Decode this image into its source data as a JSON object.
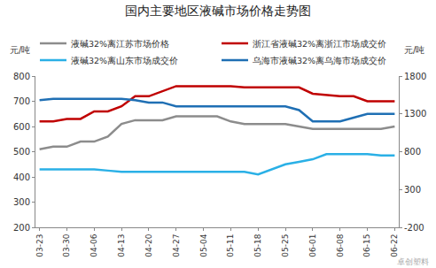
{
  "chart_data": {
    "type": "line",
    "title": "国内主要地区液碱市场价格走势图",
    "y_label": "元/吨",
    "y2_label": "元/吨",
    "annotations": [
      "卓创塑料"
    ],
    "categories": [
      "03-23",
      null,
      "03-30",
      null,
      "04-06",
      null,
      "04-13",
      null,
      "04-20",
      null,
      "04-27",
      null,
      "05-04",
      null,
      "05-11",
      null,
      "05-18",
      null,
      "05-25",
      null,
      "06-01",
      null,
      "06-08",
      null,
      "06-15",
      null,
      "06-22"
    ],
    "series": [
      {
        "name": "液碱32%离江苏市场价格",
        "color": "#8c8c8c",
        "axis": "y",
        "values": [
          510,
          520,
          520,
          540,
          540,
          560,
          610,
          625,
          625,
          625,
          640,
          640,
          640,
          640,
          620,
          610,
          610,
          610,
          610,
          600,
          590,
          590,
          590,
          590,
          590,
          590,
          600
        ]
      },
      {
        "name": "浙江省液碱32%离浙江市场成交价",
        "color": "#c00000",
        "axis": "y",
        "values": [
          620,
          620,
          630,
          630,
          660,
          660,
          680,
          720,
          720,
          740,
          760,
          760,
          760,
          760,
          760,
          755,
          755,
          755,
          755,
          755,
          730,
          725,
          720,
          720,
          700,
          700,
          700
        ]
      },
      {
        "name": "液碱32%离山东市场成交价",
        "color": "#2ab0e6",
        "axis": "y",
        "values": [
          430,
          430,
          430,
          430,
          430,
          425,
          420,
          420,
          420,
          420,
          420,
          420,
          420,
          420,
          420,
          420,
          410,
          430,
          450,
          460,
          470,
          490,
          490,
          490,
          490,
          485,
          485
        ]
      },
      {
        "name": "乌海市液碱32%离乌海市场成交价",
        "color": "#1f6fb4",
        "axis": "y2",
        "values": [
          1480,
          1500,
          1500,
          1500,
          1500,
          1500,
          1500,
          1480,
          1450,
          1450,
          1400,
          1400,
          1400,
          1400,
          1400,
          1400,
          1400,
          1400,
          1400,
          1350,
          1200,
          1200,
          1200,
          1250,
          1300,
          1300,
          1300
        ]
      }
    ],
    "ylim": [
      200,
      800
    ],
    "yticks": [
      200,
      300,
      400,
      500,
      600,
      700,
      800
    ],
    "y2lim": [
      -200,
      1800
    ],
    "y2ticks": [
      -200,
      300,
      800,
      1300,
      1800
    ],
    "grid": false,
    "legend": "top"
  }
}
